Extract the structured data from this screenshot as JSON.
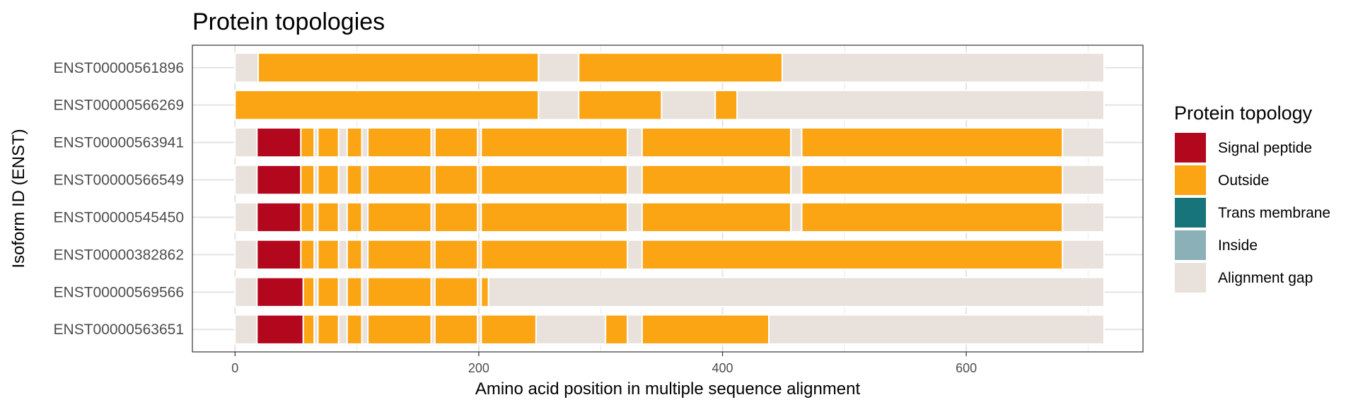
{
  "chart_data": {
    "type": "bar",
    "orientation": "horizontal-segmented",
    "title": "Protein topologies",
    "xlabel": "Amino acid position in multiple sequence alignment",
    "ylabel": "Isoform ID (ENST)",
    "xlim": [
      -35,
      745
    ],
    "xticks": [
      0,
      200,
      400,
      600
    ],
    "grid": true,
    "legend": {
      "title": "Protein topology",
      "position": "right",
      "entries": [
        {
          "name": "Signal peptide",
          "color": "#b3071d"
        },
        {
          "name": "Outside",
          "color": "#fba414"
        },
        {
          "name": "Trans membrane",
          "color": "#16747a"
        },
        {
          "name": "Inside",
          "color": "#8cb0b8"
        },
        {
          "name": "Alignment gap",
          "color": "#e8e1dc"
        }
      ]
    },
    "categories": [
      "ENST00000561896",
      "ENST00000566269",
      "ENST00000563941",
      "ENST00000566549",
      "ENST00000545450",
      "ENST00000382862",
      "ENST00000569566",
      "ENST00000563651"
    ],
    "series": [
      {
        "isoform": "ENST00000561896",
        "segments": [
          {
            "start": 0,
            "end": 19,
            "type": "Alignment gap"
          },
          {
            "start": 19,
            "end": 249,
            "type": "Outside"
          },
          {
            "start": 249,
            "end": 282,
            "type": "Alignment gap"
          },
          {
            "start": 282,
            "end": 449,
            "type": "Outside"
          },
          {
            "start": 449,
            "end": 713,
            "type": "Alignment gap"
          }
        ]
      },
      {
        "isoform": "ENST00000566269",
        "segments": [
          {
            "start": 0,
            "end": 249,
            "type": "Outside"
          },
          {
            "start": 249,
            "end": 282,
            "type": "Alignment gap"
          },
          {
            "start": 282,
            "end": 350,
            "type": "Outside"
          },
          {
            "start": 350,
            "end": 394,
            "type": "Alignment gap"
          },
          {
            "start": 394,
            "end": 412,
            "type": "Outside"
          },
          {
            "start": 412,
            "end": 713,
            "type": "Alignment gap"
          }
        ]
      },
      {
        "isoform": "ENST00000563941",
        "segments": [
          {
            "start": 0,
            "end": 18,
            "type": "Alignment gap"
          },
          {
            "start": 18,
            "end": 54,
            "type": "Signal peptide"
          },
          {
            "start": 54,
            "end": 65,
            "type": "Outside"
          },
          {
            "start": 65,
            "end": 68,
            "type": "Alignment gap"
          },
          {
            "start": 68,
            "end": 85,
            "type": "Outside"
          },
          {
            "start": 85,
            "end": 92,
            "type": "Alignment gap"
          },
          {
            "start": 92,
            "end": 104,
            "type": "Outside"
          },
          {
            "start": 104,
            "end": 109,
            "type": "Alignment gap"
          },
          {
            "start": 109,
            "end": 161,
            "type": "Outside"
          },
          {
            "start": 161,
            "end": 164,
            "type": "Alignment gap"
          },
          {
            "start": 164,
            "end": 199,
            "type": "Outside"
          },
          {
            "start": 199,
            "end": 202,
            "type": "Alignment gap"
          },
          {
            "start": 202,
            "end": 322,
            "type": "Outside"
          },
          {
            "start": 322,
            "end": 334,
            "type": "Alignment gap"
          },
          {
            "start": 334,
            "end": 456,
            "type": "Outside"
          },
          {
            "start": 456,
            "end": 465,
            "type": "Alignment gap"
          },
          {
            "start": 465,
            "end": 679,
            "type": "Outside"
          },
          {
            "start": 679,
            "end": 713,
            "type": "Alignment gap"
          }
        ]
      },
      {
        "isoform": "ENST00000566549",
        "segments": [
          {
            "start": 0,
            "end": 18,
            "type": "Alignment gap"
          },
          {
            "start": 18,
            "end": 54,
            "type": "Signal peptide"
          },
          {
            "start": 54,
            "end": 65,
            "type": "Outside"
          },
          {
            "start": 65,
            "end": 68,
            "type": "Alignment gap"
          },
          {
            "start": 68,
            "end": 85,
            "type": "Outside"
          },
          {
            "start": 85,
            "end": 92,
            "type": "Alignment gap"
          },
          {
            "start": 92,
            "end": 104,
            "type": "Outside"
          },
          {
            "start": 104,
            "end": 109,
            "type": "Alignment gap"
          },
          {
            "start": 109,
            "end": 161,
            "type": "Outside"
          },
          {
            "start": 161,
            "end": 164,
            "type": "Alignment gap"
          },
          {
            "start": 164,
            "end": 199,
            "type": "Outside"
          },
          {
            "start": 199,
            "end": 202,
            "type": "Alignment gap"
          },
          {
            "start": 202,
            "end": 322,
            "type": "Outside"
          },
          {
            "start": 322,
            "end": 334,
            "type": "Alignment gap"
          },
          {
            "start": 334,
            "end": 456,
            "type": "Outside"
          },
          {
            "start": 456,
            "end": 465,
            "type": "Alignment gap"
          },
          {
            "start": 465,
            "end": 679,
            "type": "Outside"
          },
          {
            "start": 679,
            "end": 713,
            "type": "Alignment gap"
          }
        ]
      },
      {
        "isoform": "ENST00000545450",
        "segments": [
          {
            "start": 0,
            "end": 18,
            "type": "Alignment gap"
          },
          {
            "start": 18,
            "end": 54,
            "type": "Signal peptide"
          },
          {
            "start": 54,
            "end": 65,
            "type": "Outside"
          },
          {
            "start": 65,
            "end": 68,
            "type": "Alignment gap"
          },
          {
            "start": 68,
            "end": 85,
            "type": "Outside"
          },
          {
            "start": 85,
            "end": 92,
            "type": "Alignment gap"
          },
          {
            "start": 92,
            "end": 104,
            "type": "Outside"
          },
          {
            "start": 104,
            "end": 109,
            "type": "Alignment gap"
          },
          {
            "start": 109,
            "end": 161,
            "type": "Outside"
          },
          {
            "start": 161,
            "end": 164,
            "type": "Alignment gap"
          },
          {
            "start": 164,
            "end": 199,
            "type": "Outside"
          },
          {
            "start": 199,
            "end": 202,
            "type": "Alignment gap"
          },
          {
            "start": 202,
            "end": 322,
            "type": "Outside"
          },
          {
            "start": 322,
            "end": 334,
            "type": "Alignment gap"
          },
          {
            "start": 334,
            "end": 456,
            "type": "Outside"
          },
          {
            "start": 456,
            "end": 465,
            "type": "Alignment gap"
          },
          {
            "start": 465,
            "end": 679,
            "type": "Outside"
          },
          {
            "start": 679,
            "end": 713,
            "type": "Alignment gap"
          }
        ]
      },
      {
        "isoform": "ENST00000382862",
        "segments": [
          {
            "start": 0,
            "end": 18,
            "type": "Alignment gap"
          },
          {
            "start": 18,
            "end": 54,
            "type": "Signal peptide"
          },
          {
            "start": 54,
            "end": 65,
            "type": "Outside"
          },
          {
            "start": 65,
            "end": 68,
            "type": "Alignment gap"
          },
          {
            "start": 68,
            "end": 85,
            "type": "Outside"
          },
          {
            "start": 85,
            "end": 92,
            "type": "Alignment gap"
          },
          {
            "start": 92,
            "end": 104,
            "type": "Outside"
          },
          {
            "start": 104,
            "end": 109,
            "type": "Alignment gap"
          },
          {
            "start": 109,
            "end": 161,
            "type": "Outside"
          },
          {
            "start": 161,
            "end": 164,
            "type": "Alignment gap"
          },
          {
            "start": 164,
            "end": 199,
            "type": "Outside"
          },
          {
            "start": 199,
            "end": 202,
            "type": "Alignment gap"
          },
          {
            "start": 202,
            "end": 322,
            "type": "Outside"
          },
          {
            "start": 322,
            "end": 334,
            "type": "Alignment gap"
          },
          {
            "start": 334,
            "end": 679,
            "type": "Outside"
          },
          {
            "start": 679,
            "end": 713,
            "type": "Alignment gap"
          }
        ]
      },
      {
        "isoform": "ENST00000569566",
        "segments": [
          {
            "start": 0,
            "end": 18,
            "type": "Alignment gap"
          },
          {
            "start": 18,
            "end": 56,
            "type": "Signal peptide"
          },
          {
            "start": 56,
            "end": 65,
            "type": "Outside"
          },
          {
            "start": 65,
            "end": 68,
            "type": "Alignment gap"
          },
          {
            "start": 68,
            "end": 85,
            "type": "Outside"
          },
          {
            "start": 85,
            "end": 92,
            "type": "Alignment gap"
          },
          {
            "start": 92,
            "end": 104,
            "type": "Outside"
          },
          {
            "start": 104,
            "end": 109,
            "type": "Alignment gap"
          },
          {
            "start": 109,
            "end": 161,
            "type": "Outside"
          },
          {
            "start": 161,
            "end": 164,
            "type": "Alignment gap"
          },
          {
            "start": 164,
            "end": 199,
            "type": "Outside"
          },
          {
            "start": 199,
            "end": 202,
            "type": "Alignment gap"
          },
          {
            "start": 202,
            "end": 208,
            "type": "Outside"
          },
          {
            "start": 208,
            "end": 713,
            "type": "Alignment gap"
          }
        ]
      },
      {
        "isoform": "ENST00000563651",
        "segments": [
          {
            "start": 0,
            "end": 18,
            "type": "Alignment gap"
          },
          {
            "start": 18,
            "end": 56,
            "type": "Signal peptide"
          },
          {
            "start": 56,
            "end": 65,
            "type": "Outside"
          },
          {
            "start": 65,
            "end": 68,
            "type": "Alignment gap"
          },
          {
            "start": 68,
            "end": 85,
            "type": "Outside"
          },
          {
            "start": 85,
            "end": 92,
            "type": "Alignment gap"
          },
          {
            "start": 92,
            "end": 104,
            "type": "Outside"
          },
          {
            "start": 104,
            "end": 109,
            "type": "Alignment gap"
          },
          {
            "start": 109,
            "end": 161,
            "type": "Outside"
          },
          {
            "start": 161,
            "end": 164,
            "type": "Alignment gap"
          },
          {
            "start": 164,
            "end": 199,
            "type": "Outside"
          },
          {
            "start": 199,
            "end": 202,
            "type": "Alignment gap"
          },
          {
            "start": 202,
            "end": 247,
            "type": "Outside"
          },
          {
            "start": 247,
            "end": 304,
            "type": "Alignment gap"
          },
          {
            "start": 304,
            "end": 322,
            "type": "Outside"
          },
          {
            "start": 322,
            "end": 334,
            "type": "Alignment gap"
          },
          {
            "start": 334,
            "end": 438,
            "type": "Outside"
          },
          {
            "start": 438,
            "end": 713,
            "type": "Alignment gap"
          }
        ]
      }
    ]
  }
}
